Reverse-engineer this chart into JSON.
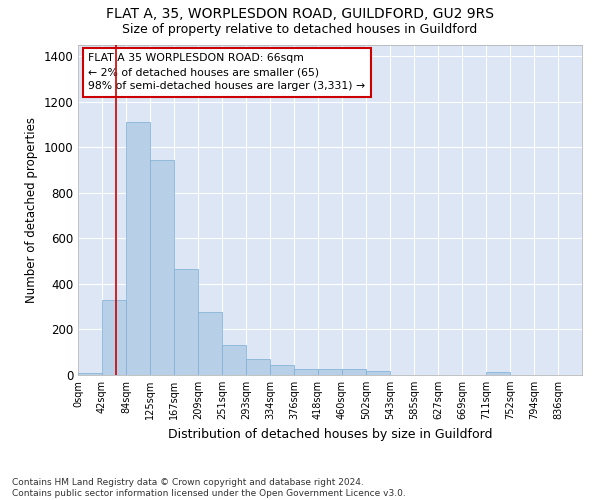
{
  "title1": "FLAT A, 35, WORPLESDON ROAD, GUILDFORD, GU2 9RS",
  "title2": "Size of property relative to detached houses in Guildford",
  "xlabel": "Distribution of detached houses by size in Guildford",
  "ylabel": "Number of detached properties",
  "footnote1": "Contains HM Land Registry data © Crown copyright and database right 2024.",
  "footnote2": "Contains public sector information licensed under the Open Government Licence v3.0.",
  "bar_labels": [
    "0sqm",
    "42sqm",
    "84sqm",
    "125sqm",
    "167sqm",
    "209sqm",
    "251sqm",
    "293sqm",
    "334sqm",
    "376sqm",
    "418sqm",
    "460sqm",
    "502sqm",
    "543sqm",
    "585sqm",
    "627sqm",
    "669sqm",
    "711sqm",
    "752sqm",
    "794sqm",
    "836sqm"
  ],
  "bar_values": [
    10,
    330,
    1110,
    945,
    465,
    275,
    130,
    70,
    42,
    25,
    27,
    25,
    18,
    0,
    0,
    0,
    0,
    15,
    0,
    0,
    0
  ],
  "bar_color": "#b8cfe8",
  "bar_edge_color": "#7aadd4",
  "background_color": "#dce6f5",
  "property_line_color": "#cc0000",
  "annotation_text": "FLAT A 35 WORPLESDON ROAD: 66sqm\n← 2% of detached houses are smaller (65)\n98% of semi-detached houses are larger (3,331) →",
  "annotation_box_color": "#cc0000",
  "ylim": [
    0,
    1450
  ],
  "yticks": [
    0,
    200,
    400,
    600,
    800,
    1000,
    1200,
    1400
  ],
  "bin_starts": [
    0,
    42,
    84,
    125,
    167,
    209,
    251,
    293,
    334,
    376,
    418,
    460,
    502,
    543,
    585,
    627,
    669,
    711,
    752,
    794,
    836
  ],
  "property_size": 66
}
